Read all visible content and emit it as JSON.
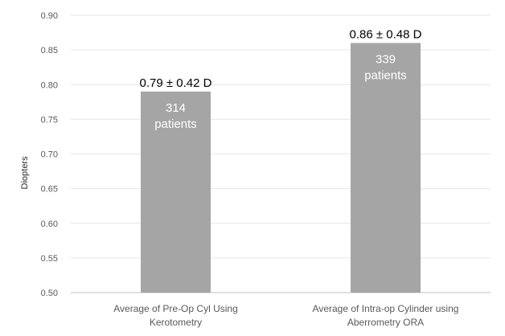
{
  "chart_data": {
    "type": "bar",
    "categories": [
      [
        "Average of Pre-Op Cyl Using",
        "Kerotometry"
      ],
      [
        "Average of Intra-op Cylinder using",
        "Aberrometry ORA"
      ]
    ],
    "values": [
      0.79,
      0.86
    ],
    "data_labels": [
      "0.79 ± 0.42 D",
      "0.86 ± 0.48 D"
    ],
    "bar_annotations": [
      [
        "314",
        "patients"
      ],
      [
        "339",
        "patients"
      ]
    ],
    "ylabel": "Diopters",
    "ylim": [
      0.5,
      0.9
    ],
    "yticks": [
      "0.50",
      "0.55",
      "0.60",
      "0.65",
      "0.70",
      "0.75",
      "0.80",
      "0.85",
      "0.90"
    ],
    "grid": true,
    "bar_color": "#a5a5a5",
    "grid_color": "#e6e6e6",
    "axis_color": "#bfbfbf"
  }
}
